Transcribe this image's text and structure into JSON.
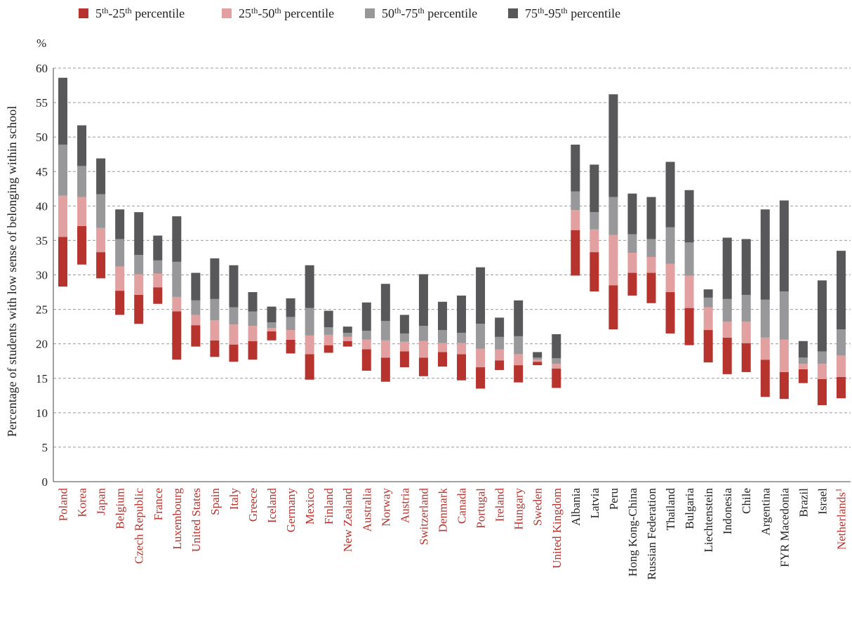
{
  "chart_data": {
    "type": "bar",
    "subtype": "floating-stacked",
    "unit_label": "%",
    "ylabel": "Percentage of students with low sense of belonging within school",
    "ylim": [
      0,
      60
    ],
    "yticks": [
      0,
      5,
      10,
      15,
      20,
      25,
      30,
      35,
      40,
      45,
      50,
      55,
      60
    ],
    "grid": true,
    "legend_position": "top",
    "legend": [
      {
        "base": "5",
        "sup1": "th",
        "mid": "-25",
        "sup2": "th",
        "tail": " percentile",
        "color": "#b7332e"
      },
      {
        "base": "25",
        "sup1": "th",
        "mid": "-50",
        "sup2": "th",
        "tail": " percentile",
        "color": "#e2a1a0"
      },
      {
        "base": "50",
        "sup1": "th",
        "mid": "-75",
        "sup2": "th",
        "tail": " percentile",
        "color": "#98989a"
      },
      {
        "base": "75",
        "sup1": "th",
        "mid": "-95",
        "sup2": "th",
        "tail": " percentile",
        "color": "#58585a"
      }
    ],
    "label_colors": {
      "oecd": "#b7332e",
      "partner": "#222222"
    },
    "categories": [
      {
        "name": "Poland",
        "oecd": true,
        "values": [
          28.3,
          35.5,
          41.5,
          48.9,
          58.6
        ]
      },
      {
        "name": "Korea",
        "oecd": true,
        "values": [
          31.5,
          37.1,
          41.3,
          45.8,
          51.7
        ]
      },
      {
        "name": "Japan",
        "oecd": true,
        "values": [
          29.5,
          33.3,
          36.8,
          41.7,
          46.9
        ]
      },
      {
        "name": "Belgium",
        "oecd": true,
        "values": [
          24.2,
          27.7,
          31.2,
          35.2,
          39.5
        ]
      },
      {
        "name": "Czech Republic",
        "oecd": true,
        "values": [
          22.9,
          27.1,
          30.1,
          32.9,
          39.1
        ]
      },
      {
        "name": "France",
        "oecd": true,
        "values": [
          25.8,
          28.2,
          30.2,
          32.1,
          35.7
        ]
      },
      {
        "name": "Luxembourg",
        "oecd": true,
        "values": [
          17.7,
          24.7,
          26.8,
          31.9,
          38.5
        ]
      },
      {
        "name": "United States",
        "oecd": true,
        "values": [
          19.6,
          22.7,
          24.2,
          26.3,
          30.3
        ]
      },
      {
        "name": "Spain",
        "oecd": true,
        "values": [
          18.1,
          20.5,
          23.4,
          26.5,
          32.4
        ]
      },
      {
        "name": "Italy",
        "oecd": true,
        "values": [
          17.4,
          19.9,
          22.8,
          25.3,
          31.4
        ]
      },
      {
        "name": "Greece",
        "oecd": true,
        "values": [
          17.7,
          20.4,
          22.6,
          24.7,
          27.5
        ]
      },
      {
        "name": "Iceland",
        "oecd": true,
        "values": [
          20.5,
          21.8,
          22.3,
          23.1,
          25.4
        ]
      },
      {
        "name": "Germany",
        "oecd": true,
        "values": [
          18.6,
          20.6,
          22.0,
          23.9,
          26.6
        ]
      },
      {
        "name": "Mexico",
        "oecd": true,
        "values": [
          14.8,
          18.5,
          21.2,
          25.2,
          31.4
        ]
      },
      {
        "name": "Finland",
        "oecd": true,
        "values": [
          18.7,
          19.8,
          21.3,
          22.4,
          24.8
        ]
      },
      {
        "name": "New Zealand",
        "oecd": true,
        "values": [
          19.6,
          20.4,
          21.0,
          21.6,
          22.5
        ]
      },
      {
        "name": "Australia",
        "oecd": true,
        "values": [
          16.1,
          19.2,
          20.6,
          21.9,
          26.0
        ]
      },
      {
        "name": "Norway",
        "oecd": true,
        "values": [
          14.5,
          18.0,
          20.5,
          23.3,
          28.7
        ]
      },
      {
        "name": "Austria",
        "oecd": true,
        "values": [
          16.6,
          18.9,
          20.3,
          21.5,
          24.2
        ]
      },
      {
        "name": "Switzerland",
        "oecd": true,
        "values": [
          15.3,
          18.0,
          20.4,
          22.6,
          30.1
        ]
      },
      {
        "name": "Denmark",
        "oecd": true,
        "values": [
          16.7,
          18.8,
          20.1,
          22.0,
          26.1
        ]
      },
      {
        "name": "Canada",
        "oecd": true,
        "values": [
          14.7,
          18.5,
          20.1,
          21.6,
          27.0
        ]
      },
      {
        "name": "Portugal",
        "oecd": true,
        "values": [
          13.5,
          16.6,
          19.3,
          22.9,
          31.1
        ]
      },
      {
        "name": "Ireland",
        "oecd": true,
        "values": [
          16.2,
          17.6,
          19.2,
          21.0,
          23.8
        ]
      },
      {
        "name": "Hungary",
        "oecd": true,
        "values": [
          14.4,
          16.9,
          18.5,
          21.1,
          26.3
        ]
      },
      {
        "name": "Sweden",
        "oecd": true,
        "values": [
          16.9,
          17.4,
          17.7,
          18.0,
          18.8
        ]
      },
      {
        "name": "United Kingdom",
        "oecd": true,
        "values": [
          13.6,
          16.4,
          17.1,
          17.9,
          21.4
        ]
      },
      {
        "name": "Albania",
        "oecd": false,
        "values": [
          29.9,
          36.5,
          39.4,
          42.1,
          48.9
        ]
      },
      {
        "name": "Latvia",
        "oecd": false,
        "values": [
          27.6,
          33.3,
          36.6,
          39.1,
          46.0
        ]
      },
      {
        "name": "Peru",
        "oecd": false,
        "values": [
          22.1,
          28.5,
          35.8,
          41.3,
          56.2
        ]
      },
      {
        "name": "Hong Kong-China",
        "oecd": false,
        "values": [
          27.0,
          30.3,
          33.2,
          35.9,
          41.8
        ]
      },
      {
        "name": "Russian Federation",
        "oecd": false,
        "values": [
          25.9,
          30.3,
          32.6,
          35.2,
          41.3
        ]
      },
      {
        "name": "Thailand",
        "oecd": false,
        "values": [
          21.5,
          27.5,
          31.6,
          36.9,
          46.4
        ]
      },
      {
        "name": "Bulgaria",
        "oecd": false,
        "values": [
          19.8,
          25.2,
          29.9,
          34.7,
          42.3
        ]
      },
      {
        "name": "Liechtenstein",
        "oecd": false,
        "values": [
          17.3,
          22.0,
          25.3,
          26.7,
          27.9
        ]
      },
      {
        "name": "Indonesia",
        "oecd": false,
        "values": [
          15.6,
          20.9,
          23.2,
          26.5,
          35.4
        ]
      },
      {
        "name": "Chile",
        "oecd": false,
        "values": [
          15.9,
          20.1,
          23.2,
          27.1,
          35.2
        ]
      },
      {
        "name": "Argentina",
        "oecd": false,
        "values": [
          12.3,
          17.7,
          20.9,
          26.4,
          39.5
        ]
      },
      {
        "name": "FYR Macedonia",
        "oecd": false,
        "values": [
          12.0,
          15.9,
          20.6,
          27.6,
          40.8
        ]
      },
      {
        "name": "Brazil",
        "oecd": false,
        "values": [
          14.3,
          16.3,
          17.1,
          18.0,
          20.4
        ]
      },
      {
        "name": "Israel",
        "oecd": false,
        "values": [
          11.1,
          14.9,
          17.1,
          18.9,
          29.2
        ]
      },
      {
        "name": "Netherlands",
        "footnote": "1",
        "oecd": true,
        "values": [
          12.1,
          15.2,
          18.3,
          22.1,
          33.5
        ]
      }
    ]
  }
}
